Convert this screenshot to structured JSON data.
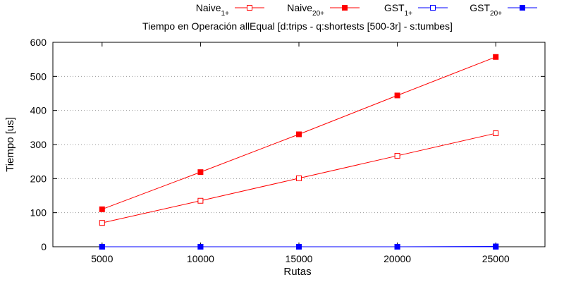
{
  "chart_data": {
    "type": "line",
    "title": "Tiempo en Operación allEqual [d:trips - q:shortests [500-3r] - s:tumbes]",
    "xlabel": "Rutas",
    "ylabel": "Tiempo [us]",
    "x": [
      5000,
      10000,
      15000,
      20000,
      25000
    ],
    "xlim": [
      2500,
      27500
    ],
    "ylim": [
      0,
      600
    ],
    "x_ticks": [
      "5000",
      "10000",
      "15000",
      "20000",
      "25000"
    ],
    "y_ticks": [
      "0",
      "100",
      "200",
      "300",
      "400",
      "500",
      "600"
    ],
    "grid": "horizontal-dotted",
    "legend_position": "top",
    "series": [
      {
        "name_base": "Naive",
        "name_sub": "1+",
        "color": "#ff0000",
        "marker": "open-square",
        "values": [
          70,
          135,
          201,
          267,
          333
        ]
      },
      {
        "name_base": "Naive",
        "name_sub": "20+",
        "color": "#ff0000",
        "marker": "filled-square",
        "values": [
          110,
          219,
          330,
          444,
          557
        ]
      },
      {
        "name_base": "GST",
        "name_sub": "1+",
        "color": "#0000ff",
        "marker": "open-square",
        "values": [
          0,
          0,
          0,
          0,
          0
        ]
      },
      {
        "name_base": "GST",
        "name_sub": "20+",
        "color": "#0000ff",
        "marker": "filled-square",
        "values": [
          0,
          0,
          0,
          0,
          1
        ]
      }
    ]
  }
}
